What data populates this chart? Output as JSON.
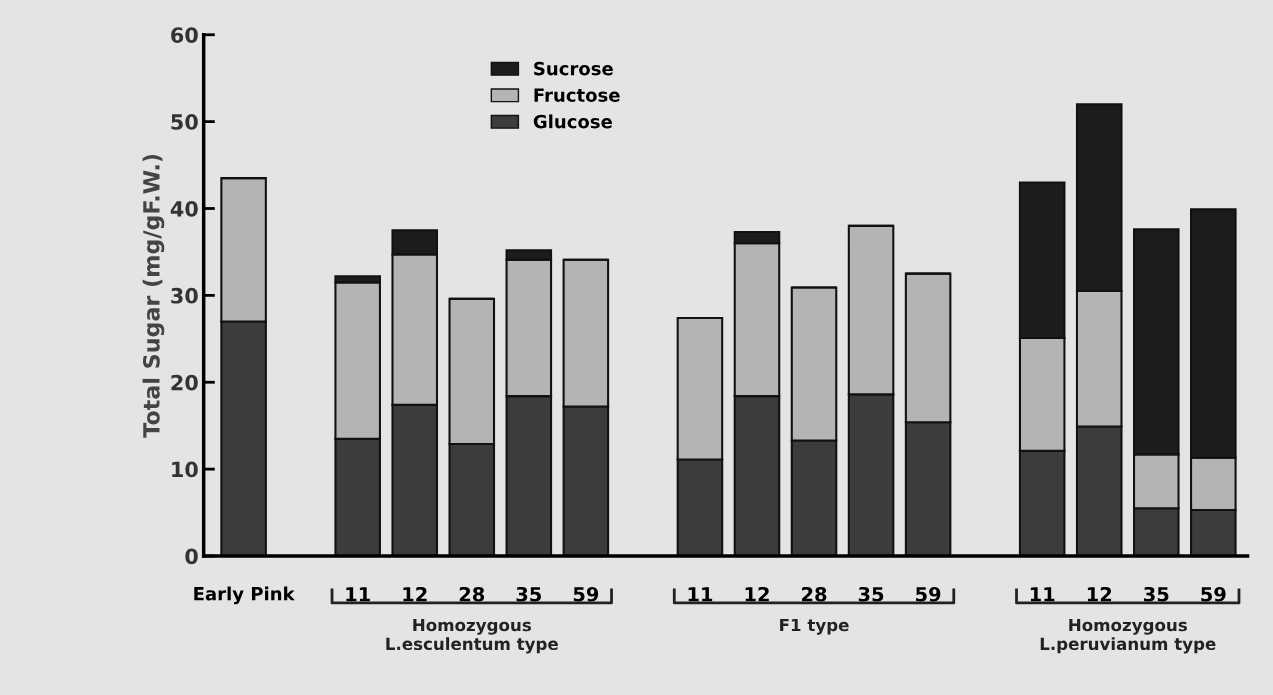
{
  "chart_data": {
    "type": "bar",
    "stacked": true,
    "ylabel": "Total Sugar (mg/gF.W.)",
    "categories": [
      "Early Pink",
      null,
      "11",
      "12",
      "28",
      "35",
      "59",
      null,
      "11",
      "12",
      "28",
      "35",
      "59",
      null,
      "11",
      "12",
      "35",
      "59"
    ],
    "series": [
      {
        "name": "Glucose",
        "color": "#3c3c3c",
        "values": [
          27.0,
          null,
          13.5,
          17.4,
          12.9,
          18.4,
          17.2,
          null,
          11.1,
          18.4,
          13.3,
          18.6,
          15.4,
          null,
          12.1,
          14.9,
          5.5,
          5.3
        ]
      },
      {
        "name": "Fructose",
        "color": "#b4b4b4",
        "values": [
          16.5,
          null,
          18.0,
          17.3,
          16.7,
          15.7,
          16.9,
          null,
          16.3,
          17.6,
          17.6,
          19.4,
          17.1,
          null,
          13.0,
          15.6,
          6.2,
          6.0
        ]
      },
      {
        "name": "Sucrose",
        "color": "#1c1c1c",
        "values": [
          0,
          null,
          0.7,
          2.8,
          0,
          1.1,
          0,
          null,
          0,
          1.3,
          0,
          0,
          0,
          null,
          17.9,
          21.5,
          25.9,
          28.6
        ]
      }
    ],
    "ylim": [
      0,
      60
    ],
    "yticks": [
      0,
      10,
      20,
      30,
      40,
      50,
      60
    ],
    "legend": "top",
    "annotations": [
      "Homozygous\nL.esculentum type",
      "F1 type",
      "Homozygous\nL.peruvianum type"
    ]
  }
}
